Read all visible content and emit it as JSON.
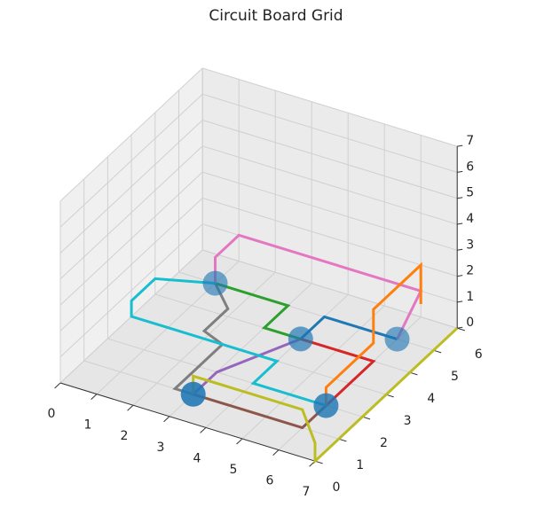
{
  "chart_data": {
    "type": "line3d",
    "title": "Circuit Board Grid",
    "xlim": [
      0,
      7
    ],
    "ylim": [
      0,
      6
    ],
    "zlim": [
      0,
      7
    ],
    "xticks": [
      0,
      1,
      2,
      3,
      4,
      5,
      6,
      7
    ],
    "yticks": [
      0,
      1,
      2,
      3,
      4,
      5,
      6
    ],
    "zticks": [
      0,
      1,
      2,
      3,
      4,
      5,
      6,
      7
    ],
    "grid": true,
    "series": [
      {
        "color": "#7f7f7f",
        "x": [
          3,
          2.5,
          2.5,
          2,
          2,
          1
        ],
        "y": [
          1,
          1,
          3,
          3,
          4,
          5
        ],
        "z": [
          0,
          0,
          0,
          0.3,
          0.3,
          0
        ]
      },
      {
        "color": "#8c564b",
        "x": [
          3,
          6,
          6
        ],
        "y": [
          1,
          1,
          2
        ],
        "z": [
          0,
          0,
          0
        ]
      },
      {
        "color": "#9467bd",
        "x": [
          3,
          3,
          3.5,
          4
        ],
        "y": [
          1,
          2,
          3,
          4
        ],
        "z": [
          0,
          0,
          0,
          0
        ]
      },
      {
        "color": "#2ca02c",
        "x": [
          1,
          3,
          3,
          4
        ],
        "y": [
          5,
          5,
          4,
          4
        ],
        "z": [
          0,
          0,
          0,
          0
        ]
      },
      {
        "color": "#d62728",
        "x": [
          4,
          6,
          6
        ],
        "y": [
          4,
          4,
          2
        ],
        "z": [
          0,
          0,
          0
        ]
      },
      {
        "color": "#1f77b4",
        "x": [
          4,
          4,
          6
        ],
        "y": [
          4,
          5,
          5
        ],
        "z": [
          0,
          0,
          0
        ]
      },
      {
        "color": "#e377c2",
        "x": [
          1,
          1,
          1,
          6,
          6
        ],
        "y": [
          5,
          5,
          6,
          6,
          5
        ],
        "z": [
          0,
          1,
          1,
          1,
          0
        ]
      },
      {
        "color": "#ff7f0e",
        "x": [
          6,
          6,
          6,
          6,
          6,
          6
        ],
        "y": [
          2,
          2,
          4,
          4,
          6,
          6
        ],
        "z": [
          0,
          0.7,
          0.7,
          2,
          2,
          0.5
        ]
      },
      {
        "color": "#bcbd22",
        "x": [
          3,
          3,
          6,
          7,
          7,
          7
        ],
        "y": [
          1,
          1,
          1,
          0,
          0,
          6
        ],
        "z": [
          0,
          0.7,
          0.7,
          0.7,
          0,
          0
        ]
      },
      {
        "color": "#17becf",
        "x": [
          6,
          4,
          4,
          1,
          0,
          0,
          0,
          1
        ],
        "y": [
          2,
          2,
          3,
          3,
          3,
          3,
          4,
          5
        ],
        "z": [
          0,
          0,
          0,
          0,
          0,
          0.6,
          0.6,
          0
        ]
      }
    ],
    "nodes": {
      "color": "#1f77b4",
      "x": [
        3,
        6,
        4,
        6,
        1
      ],
      "y": [
        1,
        2,
        4,
        5,
        5
      ],
      "z": [
        0,
        0,
        0,
        0,
        0
      ]
    }
  }
}
